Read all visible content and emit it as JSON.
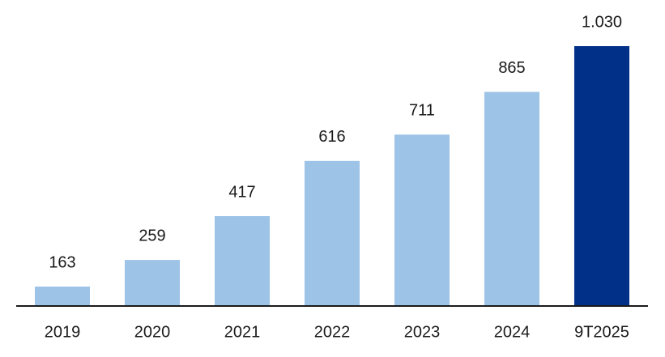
{
  "chart_data": {
    "type": "bar",
    "categories": [
      "2019",
      "2020",
      "2021",
      "2022",
      "2023",
      "2024",
      "9T2025"
    ],
    "values": [
      163,
      259,
      417,
      616,
      711,
      865,
      1030
    ],
    "value_labels": [
      "163",
      "259",
      "417",
      "616",
      "711",
      "865",
      "1.030"
    ],
    "colors": [
      "#9dc3e6",
      "#9dc3e6",
      "#9dc3e6",
      "#9dc3e6",
      "#9dc3e6",
      "#9dc3e6",
      "#003087"
    ],
    "ylim": [
      93,
      1030
    ]
  }
}
